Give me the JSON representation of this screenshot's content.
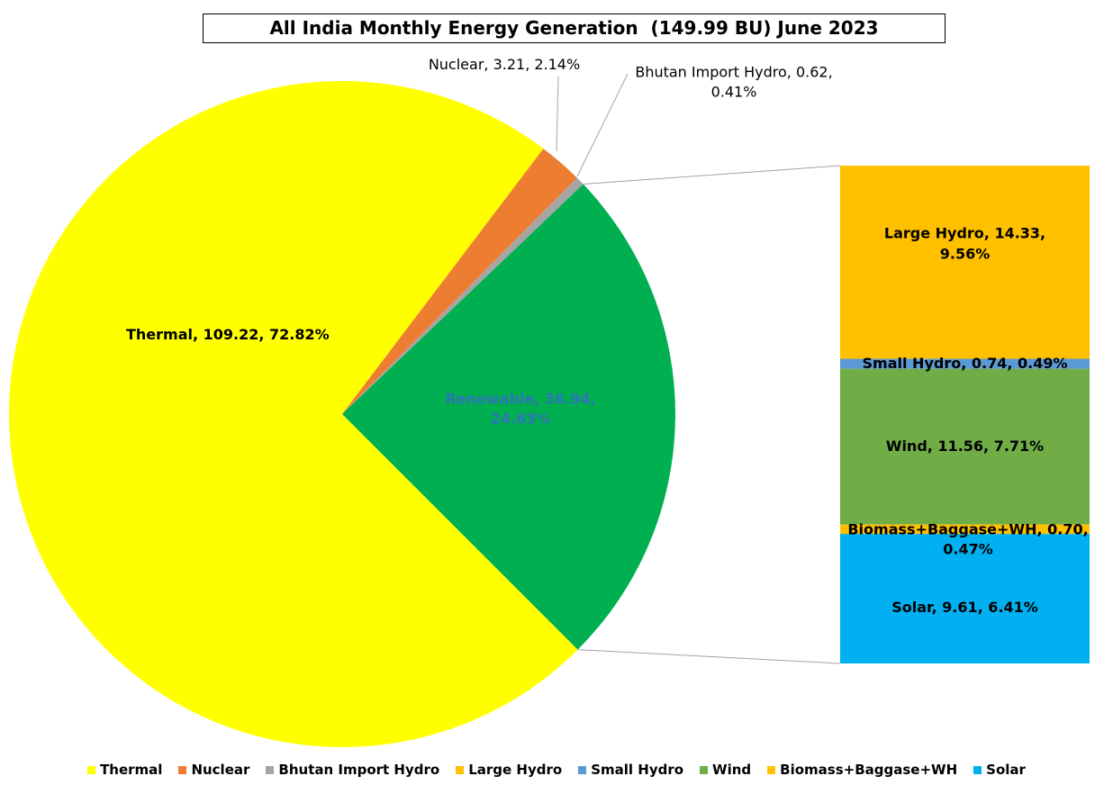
{
  "chart_data": {
    "type": "pie-of-bar",
    "title": "All India Monthly Energy Generation  (149.99 BU) June 2023",
    "categories": [
      "Thermal",
      "Nuclear",
      "Bhutan Import Hydro",
      "Renewable"
    ],
    "values": [
      109.22,
      3.21,
      0.62,
      36.94
    ],
    "value_labels": [
      "Thermal, 109.22, 72.82%",
      "Nuclear, 3.21, 2.14%",
      "Bhutan Import Hydro, 0.62, 0.41%",
      "Renewable, 36.94, 24.63%"
    ],
    "colors": [
      "#ffff00",
      "#ed7d31",
      "#a5a5a5",
      "#00b050"
    ],
    "expanded_slice": 3,
    "breakdown": {
      "categories": [
        "Large Hydro",
        "Small Hydro",
        "Wind",
        "Biomass+Baggase+WH",
        "Solar"
      ],
      "values": [
        14.33,
        0.74,
        11.56,
        0.7,
        9.61
      ],
      "value_labels": [
        "Large Hydro, 14.33, 9.56%",
        "Small Hydro, 0.74, 0.49%",
        "Wind, 11.56, 7.71%",
        "Biomass+Baggase+WH, 0.70, 0.47%",
        "Solar, 9.61, 6.41%"
      ],
      "colors": [
        "#ffc000",
        "#5b9bd5",
        "#70ad47",
        "#ffc000",
        "#00b0f0"
      ]
    },
    "legend": "bottom"
  }
}
